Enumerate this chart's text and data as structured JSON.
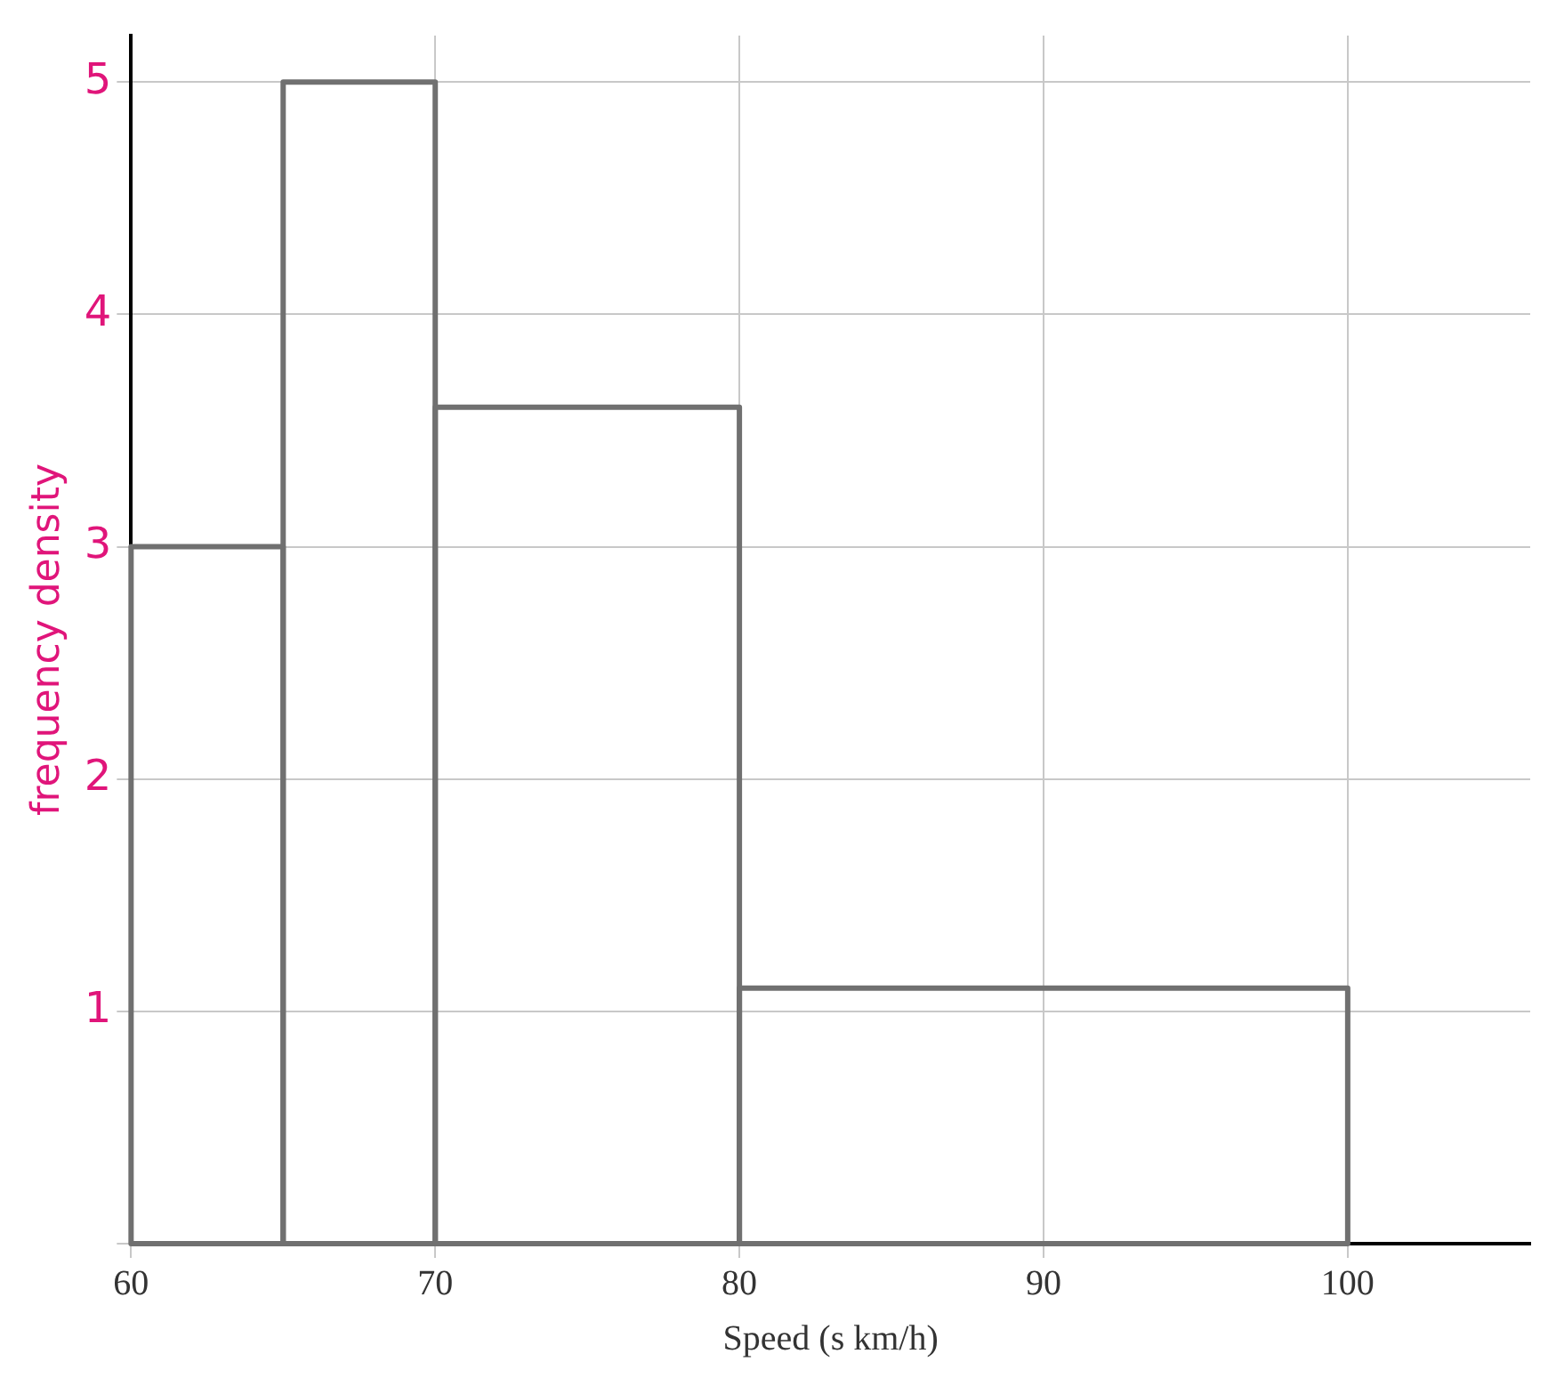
{
  "chart_data": {
    "type": "histogram",
    "xlabel": "Speed (s km/h)",
    "ylabel": "frequency density",
    "bins": [
      60,
      65,
      70,
      80,
      100
    ],
    "values": [
      3,
      5,
      3.6,
      1.1
    ],
    "color": "#707070",
    "xlim": [
      60,
      106
    ],
    "xticks": [
      60,
      70,
      80,
      90,
      100
    ],
    "ylim": [
      0,
      5.2
    ],
    "yticks": [
      {
        "value": 0,
        "label": null
      },
      1,
      2,
      3,
      4,
      5
    ],
    "grid": true
  }
}
